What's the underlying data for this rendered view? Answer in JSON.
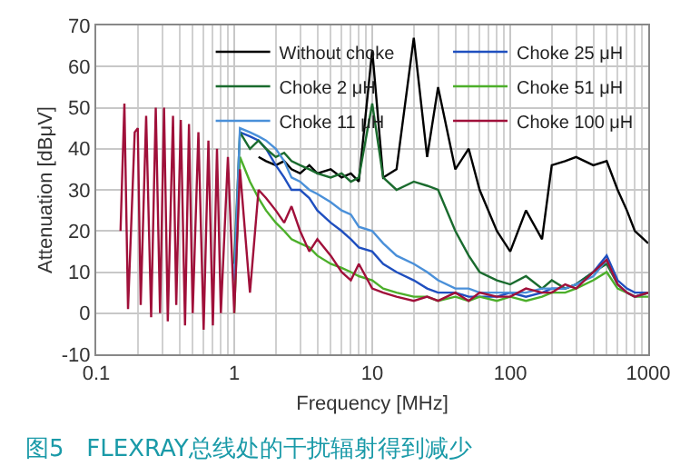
{
  "chart_data": {
    "type": "line",
    "xlabel": "Frequency [MHz]",
    "ylabel": "Attenuation [dBμV]",
    "annotations": [
      "图5   FLEXRAY总线处的干扰辐射得到减少"
    ],
    "log": "x",
    "grid": true,
    "legend": "top right",
    "marker": "none",
    "line_style": "solid",
    "xlim": [
      0.1,
      1000
    ],
    "xticks": [
      0.1,
      1,
      10,
      100,
      1000
    ],
    "ylim": [
      -10,
      70
    ],
    "yticks": [
      -10,
      0,
      10,
      20,
      30,
      40,
      50,
      60,
      70
    ],
    "x": [
      0.15,
      0.16,
      0.17,
      0.19,
      0.2,
      0.21,
      0.23,
      0.25,
      0.27,
      0.29,
      0.31,
      0.33,
      0.36,
      0.38,
      0.41,
      0.44,
      0.47,
      0.5,
      0.55,
      0.6,
      0.65,
      0.7,
      0.75,
      0.8,
      0.9,
      1.0,
      1.1,
      1.3,
      1.5,
      1.7,
      2.0,
      2.3,
      2.6,
      3,
      3.5,
      4,
      5,
      6,
      7,
      8,
      10,
      12,
      15,
      20,
      25,
      30,
      40,
      50,
      60,
      80,
      100,
      130,
      170,
      200,
      250,
      300,
      400,
      500,
      600,
      700,
      800,
      1000
    ],
    "series": [
      {
        "name": "Without choke",
        "color": "#000000",
        "values": [
          null,
          null,
          null,
          null,
          null,
          null,
          null,
          null,
          null,
          null,
          null,
          null,
          null,
          null,
          null,
          null,
          null,
          null,
          null,
          null,
          null,
          null,
          null,
          null,
          null,
          null,
          null,
          null,
          38,
          37,
          36,
          37,
          35,
          34,
          36,
          34,
          35,
          33,
          34,
          32,
          64,
          33,
          35,
          67,
          38,
          55,
          35,
          40,
          30,
          20,
          15,
          25,
          18,
          36,
          37,
          38,
          36,
          37,
          30,
          25,
          20,
          17
        ]
      },
      {
        "name": "Choke 25 μH",
        "color": "#1f4fbf",
        "values": [
          null,
          null,
          null,
          null,
          null,
          null,
          null,
          null,
          null,
          null,
          null,
          null,
          null,
          null,
          null,
          null,
          null,
          null,
          null,
          null,
          null,
          null,
          null,
          null,
          null,
          null,
          44,
          43,
          42,
          40,
          36,
          33,
          30,
          30,
          28,
          25,
          22,
          20,
          18,
          16,
          15,
          12,
          10,
          8,
          6,
          5,
          5,
          4,
          4,
          4,
          5,
          4,
          5,
          6,
          6,
          7,
          10,
          14,
          8,
          6,
          5,
          5
        ]
      },
      {
        "name": "Choke 2 μH",
        "color": "#1a6b2e",
        "values": [
          null,
          null,
          null,
          null,
          null,
          null,
          null,
          null,
          null,
          null,
          null,
          null,
          null,
          null,
          null,
          null,
          null,
          null,
          null,
          null,
          null,
          null,
          null,
          null,
          null,
          12,
          44,
          40,
          42,
          40,
          38,
          39,
          37,
          36,
          35,
          34,
          33,
          34,
          32,
          33,
          51,
          33,
          30,
          32,
          31,
          30,
          20,
          14,
          10,
          8,
          7,
          9,
          6,
          8,
          6,
          7,
          10,
          12,
          7,
          5,
          4,
          5
        ]
      },
      {
        "name": "Choke 51 μH",
        "color": "#4caf2a",
        "values": [
          null,
          null,
          null,
          null,
          null,
          null,
          null,
          null,
          null,
          null,
          null,
          null,
          null,
          null,
          null,
          null,
          null,
          null,
          null,
          null,
          null,
          null,
          null,
          null,
          null,
          0,
          38,
          32,
          28,
          25,
          22,
          20,
          18,
          17,
          16,
          14,
          12,
          11,
          10,
          9,
          8,
          6,
          5,
          4,
          4,
          3,
          4,
          3,
          4,
          3,
          4,
          3,
          4,
          5,
          5,
          6,
          8,
          10,
          6,
          5,
          4,
          4
        ]
      },
      {
        "name": "Choke 11 μH",
        "color": "#4a90d9",
        "values": [
          null,
          null,
          null,
          null,
          null,
          null,
          null,
          null,
          null,
          null,
          null,
          null,
          null,
          null,
          null,
          null,
          null,
          null,
          null,
          null,
          null,
          null,
          null,
          null,
          null,
          8,
          45,
          44,
          43,
          42,
          40,
          37,
          33,
          32,
          30,
          29,
          27,
          25,
          24,
          21,
          20,
          17,
          14,
          12,
          10,
          8,
          6,
          6,
          5,
          5,
          5,
          5,
          6,
          6,
          6,
          7,
          9,
          13,
          7,
          5,
          4,
          5
        ]
      },
      {
        "name": "Choke 100 μH",
        "color": "#a0103a",
        "values": [
          20,
          51,
          1,
          44,
          45,
          2,
          48,
          -1,
          50,
          0,
          50,
          -2,
          48,
          2,
          47,
          -3,
          46,
          0,
          44,
          -4,
          42,
          -3,
          40,
          0,
          38,
          0,
          35,
          5,
          30,
          28,
          25,
          22,
          26,
          20,
          15,
          18,
          14,
          10,
          8,
          12,
          6,
          5,
          4,
          3,
          4,
          3,
          5,
          3,
          5,
          4,
          4,
          6,
          5,
          5,
          7,
          6,
          10,
          13,
          7,
          5,
          4,
          5
        ]
      }
    ]
  }
}
